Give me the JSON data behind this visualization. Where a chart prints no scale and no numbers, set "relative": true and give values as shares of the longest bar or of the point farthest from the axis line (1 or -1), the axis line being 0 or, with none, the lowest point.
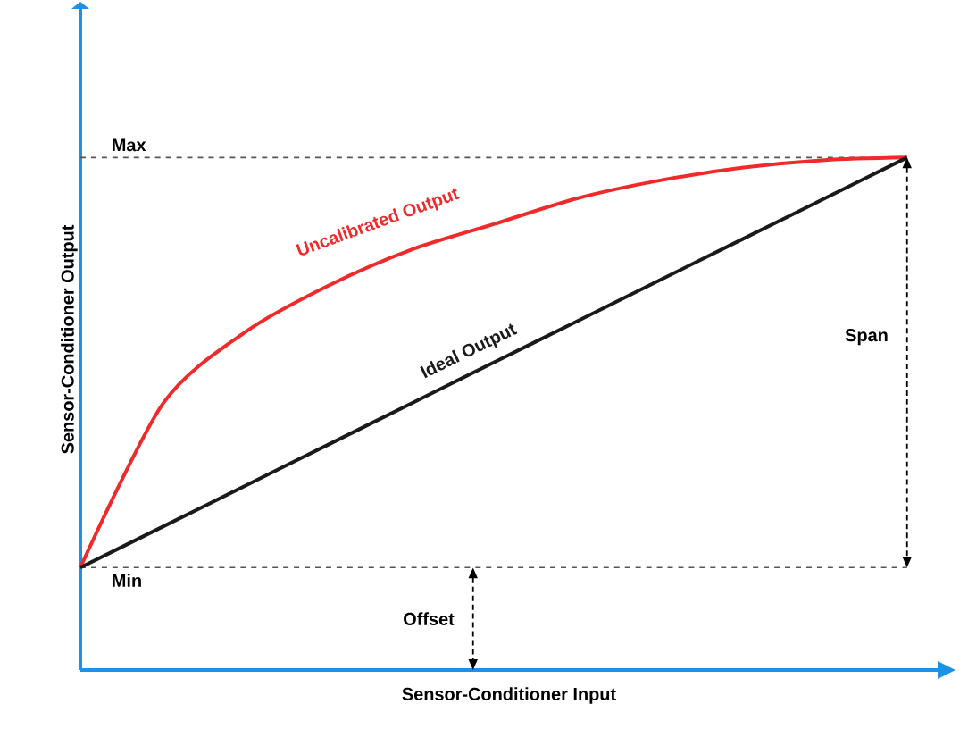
{
  "chart_data": {
    "type": "line",
    "relative": true,
    "xlabel": "Sensor-Conditioner Input",
    "ylabel": "Sensor-Conditioner Output",
    "categories": [
      null,
      null,
      null,
      null,
      null,
      null,
      null,
      null,
      null,
      null,
      null
    ],
    "series": [
      {
        "name": "Uncalibrated Output",
        "color": "#ee2a2a",
        "values": [
          0.2,
          0.52,
          0.66,
          0.75,
          0.82,
          0.87,
          0.92,
          0.955,
          0.98,
          0.995,
          1
        ]
      },
      {
        "name": "Ideal Output",
        "color": "#1a1a1a",
        "values": [
          0.2,
          0.28,
          0.36,
          0.44,
          0.52,
          0.6,
          0.68,
          0.76,
          0.84,
          0.92,
          1
        ]
      }
    ],
    "ref_lines": [
      {
        "axis": "y",
        "value": 1,
        "label": "Max",
        "color": "#555555",
        "line_style": "dashed"
      },
      {
        "axis": "y",
        "value": 0.2,
        "label": "Min",
        "color": "#555555",
        "line_style": "dashed"
      }
    ],
    "annotations": [
      "Span",
      "Offset"
    ],
    "marker": "none",
    "line_style": "solid"
  }
}
